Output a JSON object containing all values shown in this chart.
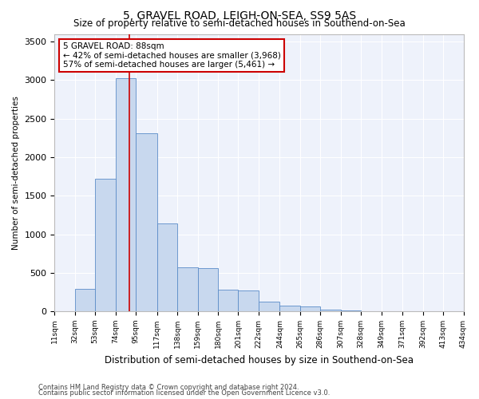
{
  "title": "5, GRAVEL ROAD, LEIGH-ON-SEA, SS9 5AS",
  "subtitle": "Size of property relative to semi-detached houses in Southend-on-Sea",
  "xlabel": "Distribution of semi-detached houses by size in Southend-on-Sea",
  "ylabel": "Number of semi-detached properties",
  "footer1": "Contains HM Land Registry data © Crown copyright and database right 2024.",
  "footer2": "Contains public sector information licensed under the Open Government Licence v3.0.",
  "property_size": 88,
  "annotation_title": "5 GRAVEL ROAD: 88sqm",
  "annotation_line2": "← 42% of semi-detached houses are smaller (3,968)",
  "annotation_line3": "57% of semi-detached houses are larger (5,461) →",
  "bar_color": "#c8d8ee",
  "bar_edge_color": "#5b8cc8",
  "redline_color": "#cc0000",
  "background_color": "#eef2fb",
  "grid_color": "#ffffff",
  "bins": [
    11,
    32,
    53,
    74,
    95,
    117,
    138,
    159,
    180,
    201,
    222,
    244,
    265,
    286,
    307,
    328,
    349,
    371,
    392,
    413,
    434
  ],
  "counts": [
    5,
    295,
    1720,
    3020,
    2310,
    1140,
    570,
    565,
    280,
    270,
    125,
    78,
    68,
    22,
    8,
    4,
    2,
    2,
    1,
    1
  ],
  "ylim": [
    0,
    3600
  ],
  "yticks": [
    0,
    500,
    1000,
    1500,
    2000,
    2500,
    3000,
    3500
  ],
  "tick_labels": [
    "11sqm",
    "32sqm",
    "53sqm",
    "74sqm",
    "95sqm",
    "117sqm",
    "138sqm",
    "159sqm",
    "180sqm",
    "201sqm",
    "222sqm",
    "244sqm",
    "265sqm",
    "286sqm",
    "307sqm",
    "328sqm",
    "349sqm",
    "371sqm",
    "392sqm",
    "413sqm",
    "434sqm"
  ]
}
